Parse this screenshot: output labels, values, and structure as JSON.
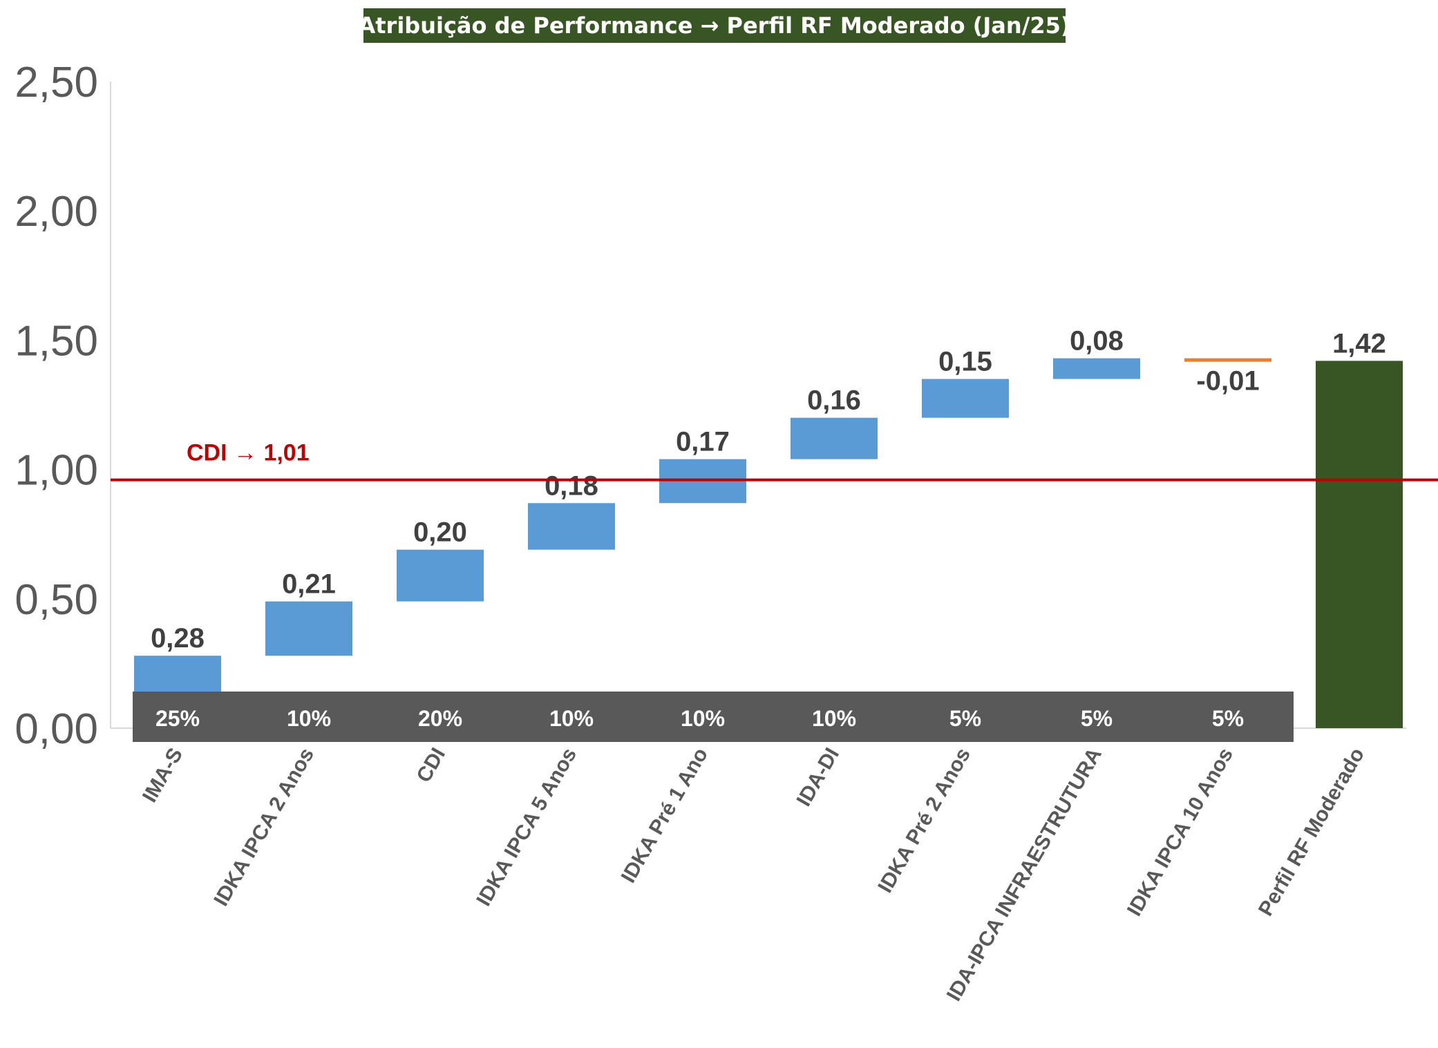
{
  "chart_data": {
    "type": "waterfall",
    "title": "Atribuição de Performance → Perfil RF Moderado (Jan/25)",
    "categories": [
      "IMA-S",
      "IDKA IPCA 2 Anos",
      "CDI",
      "IDKA IPCA 5 Anos",
      "IDKA Pré 1 Ano",
      "IDA-DI",
      "IDKA Pré 2 Anos",
      "IDA-IPCA INFRAESTRUTURA",
      "IDKA IPCA 10 Anos",
      "Perfil RF Moderado"
    ],
    "values": [
      0.28,
      0.21,
      0.2,
      0.18,
      0.17,
      0.16,
      0.15,
      0.08,
      -0.01,
      1.42
    ],
    "value_labels": [
      "0,28",
      "0,21",
      "0,20",
      "0,18",
      "0,17",
      "0,16",
      "0,15",
      "0,08",
      "-0,01",
      "1,42"
    ],
    "total_index": 9,
    "weights": [
      "25%",
      "10%",
      "20%",
      "10%",
      "10%",
      "10%",
      "5%",
      "5%",
      "5%"
    ],
    "ylim": [
      0,
      2.5
    ],
    "yticks": [
      {
        "value": 0,
        "label": "0,00"
      },
      {
        "value": 0.5,
        "label": "0,50"
      },
      {
        "value": 1.0,
        "label": "1,00"
      },
      {
        "value": 1.5,
        "label": "1,50"
      },
      {
        "value": 2.0,
        "label": "2,00"
      },
      {
        "value": 2.5,
        "label": "2,50"
      }
    ],
    "reference_line": {
      "label": "CDI → 1,01",
      "value": 1.01,
      "color": "#c00000"
    },
    "grid": false,
    "colors": {
      "increase": "#5b9bd5",
      "decrease": "#ed7d31",
      "total": "#375623",
      "title_bg": "#375623",
      "weight_band": "#595959",
      "reference": "#c00000",
      "label_text": "#404040",
      "axis_text": "#595959"
    }
  }
}
